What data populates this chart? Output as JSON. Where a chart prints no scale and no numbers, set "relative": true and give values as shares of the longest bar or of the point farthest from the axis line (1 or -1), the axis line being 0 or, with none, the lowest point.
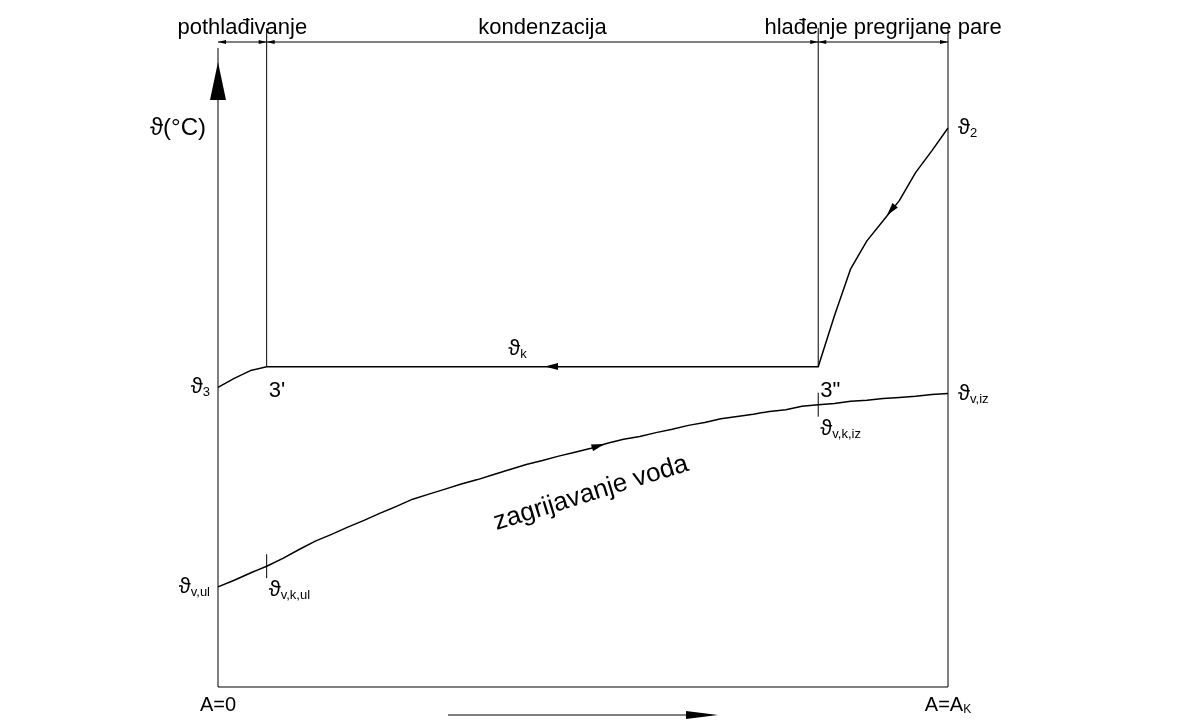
{
  "chart_data": {
    "type": "line",
    "relative": true,
    "ylabel": "ϑ(°C)",
    "marker": "none",
    "line_style": "solid",
    "categories": [
      "A=0",
      null,
      null,
      null,
      null,
      null,
      null,
      null,
      null,
      null,
      null,
      null,
      null,
      null,
      null,
      null,
      null,
      null,
      null,
      null,
      null,
      null,
      null,
      null,
      null,
      null,
      null,
      null,
      null,
      null,
      null,
      null,
      null,
      null,
      null,
      null,
      null,
      null,
      null,
      null,
      null,
      null,
      null,
      null,
      null,
      "A=A$_{K}$"
    ],
    "series": [
      {
        "name": "ϑ$_{k}$",
        "color": "#000000",
        "values": [
          0.536,
          0.552,
          0.566,
          0.573,
          0.573,
          0.573,
          0.573,
          0.573,
          0.573,
          0.573,
          0.573,
          0.573,
          0.573,
          0.573,
          0.573,
          0.573,
          0.573,
          0.573,
          0.573,
          0.573,
          0.573,
          0.573,
          0.573,
          0.573,
          0.573,
          0.573,
          0.573,
          0.573,
          0.573,
          0.573,
          0.573,
          0.573,
          0.573,
          0.573,
          0.573,
          0.573,
          0.573,
          0.573,
          0.664,
          0.748,
          0.798,
          0.834,
          0.87,
          0.92,
          0.959,
          1
        ]
      },
      {
        "name": "zagrijavanje voda",
        "color": "#000000",
        "values": [
          0.179,
          0.191,
          0.204,
          0.216,
          0.23,
          0.246,
          0.261,
          0.273,
          0.286,
          0.298,
          0.311,
          0.323,
          0.336,
          0.345,
          0.354,
          0.363,
          0.371,
          0.38,
          0.389,
          0.398,
          0.405,
          0.413,
          0.42,
          0.427,
          0.436,
          0.443,
          0.448,
          0.455,
          0.461,
          0.468,
          0.473,
          0.48,
          0.484,
          0.488,
          0.493,
          0.496,
          0.502,
          0.505,
          0.507,
          0.511,
          0.513,
          0.516,
          0.518,
          0.52,
          0.523,
          0.525
        ]
      }
    ],
    "annotations": [
      "pothlađivanje",
      "kondenzacija",
      "hlađenje pregrijane pare",
      {
        "text": "ϑ$_{2}$",
        "x": "A=A$_{K}$",
        "y": 1
      },
      "3'",
      "3\"",
      "ϑ$_{v,k,iz}$",
      "ϑ$_{v,k,ul}$",
      {
        "text": "ϑ$_{3}$",
        "x": "A=0",
        "y": 0.536
      },
      {
        "text": "ϑ$_{v,iz}$",
        "x": "A=A$_{K}$",
        "y": 0.525
      },
      {
        "text": "ϑ$_{v,ul}$",
        "x": "A=0",
        "y": 0.179
      }
    ]
  }
}
